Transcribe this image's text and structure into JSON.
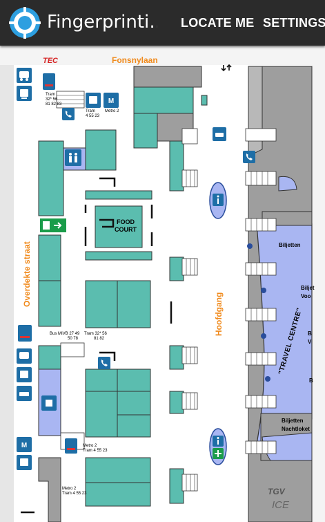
{
  "app": {
    "title": "Fingerprinti…",
    "actions": {
      "locate": "LOCATE ME",
      "settings": "SETTINGS"
    }
  },
  "map": {
    "streets": {
      "top": "Fonsnylaan",
      "left": "Overdekte straat",
      "hall": "Hoofdgang"
    },
    "logos": {
      "tec": "TEC",
      "tgv": "TGV",
      "ice": "ICE"
    },
    "food_court": [
      "FOOD",
      "COURT"
    ],
    "travel_centre": "\"TRAVEL CENTRE\"",
    "transit": {
      "tram_top": [
        "Tram",
        "32* 56",
        "81 82 83"
      ],
      "tram_4": [
        "Tram",
        "4 55 23"
      ],
      "metro2_top": "Metro 2",
      "bus_line": [
        "Bus MIVB 27 49",
        "50 78"
      ],
      "tram_mid": [
        "Tram 32* 56",
        "81   82"
      ],
      "metro2_low": [
        "Metro 2",
        "Tram 4 55 23"
      ],
      "metro2_bottom": [
        "Metro 2",
        "Tram 4 55 23"
      ]
    },
    "counters": {
      "biljetten_1": "Biljetten",
      "biljetten_2": "Biljet",
      "voor": "Voo",
      "b": "B",
      "v": "V",
      "b2": "B",
      "biljetten_3": "Biljetten",
      "nachtloket": "Nachtloket"
    },
    "colors": {
      "shop": "#5bbdaf",
      "concourse": "#a9b6f2",
      "platform": "#9a9a9a",
      "street": "#f08a1c",
      "icon": "#1e6ea6"
    }
  }
}
